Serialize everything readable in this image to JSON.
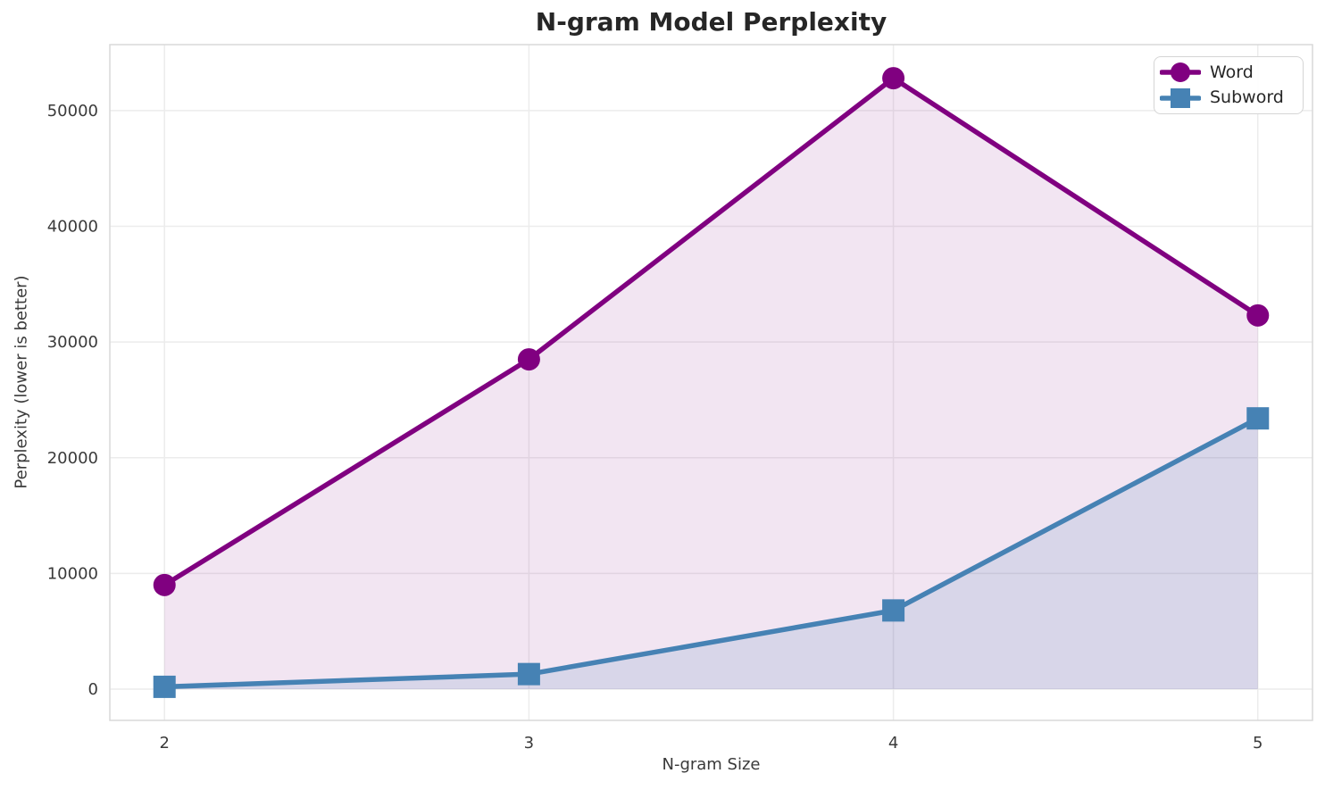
{
  "chart_data": {
    "type": "line",
    "title": "N-gram Model Perplexity",
    "xlabel": "N-gram Size",
    "ylabel": "Perplexity (lower is better)",
    "x": [
      2,
      3,
      4,
      5
    ],
    "series": [
      {
        "name": "Word",
        "values": [
          9000,
          28500,
          52800,
          32300
        ],
        "color": "#800080",
        "marker": "circle",
        "fill_alpha": 0.1
      },
      {
        "name": "Subword",
        "values": [
          200,
          1300,
          6800,
          23400
        ],
        "color": "#4682B4",
        "marker": "square",
        "fill_alpha": 0.15
      }
    ],
    "xticks": [
      2,
      3,
      4,
      5
    ],
    "yticks": [
      0,
      10000,
      20000,
      30000,
      40000,
      50000
    ],
    "xlim": [
      1.85,
      5.15
    ],
    "ylim": [
      -2700,
      55700
    ],
    "grid": true,
    "area_fill_to_zero": true,
    "legend_position": "upper right",
    "grid_color": "#ececec",
    "spine_color": "#d9d9d9",
    "text_color": "#3a3a3a",
    "title_color": "#262626"
  }
}
